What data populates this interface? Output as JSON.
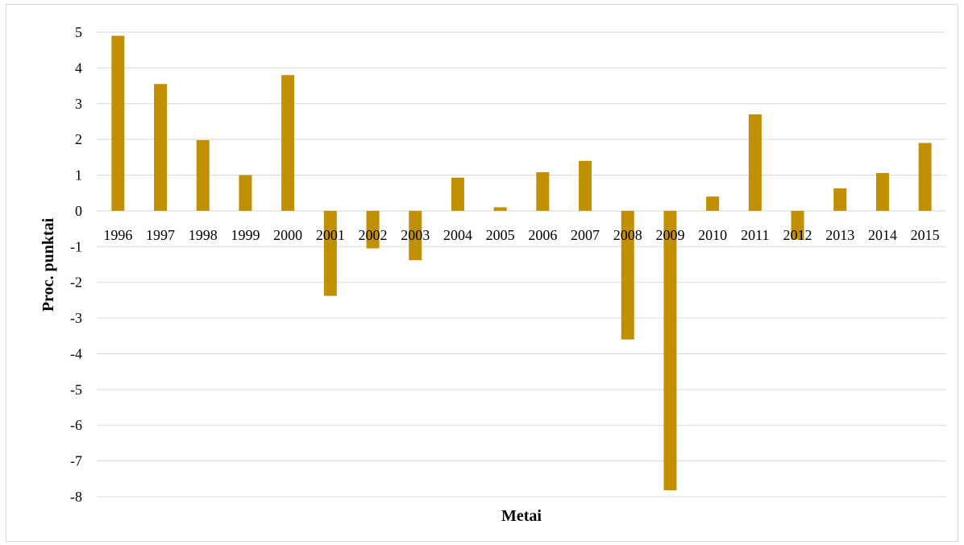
{
  "chart_data": {
    "type": "bar",
    "title": "",
    "xlabel": "Metai",
    "ylabel": "Proc. punktai",
    "categories": [
      "1996",
      "1997",
      "1998",
      "1999",
      "2000",
      "2001",
      "2002",
      "2003",
      "2004",
      "2005",
      "2006",
      "2007",
      "2008",
      "2009",
      "2010",
      "2011",
      "2012",
      "2013",
      "2014",
      "2015"
    ],
    "values": [
      4.9,
      3.55,
      1.98,
      1.0,
      3.8,
      -2.38,
      -1.05,
      -1.38,
      0.93,
      0.1,
      1.08,
      1.4,
      -3.6,
      -7.82,
      0.4,
      2.7,
      -0.8,
      0.63,
      1.06,
      1.9
    ],
    "ylim": [
      -8,
      5
    ],
    "yticks": [
      5,
      4,
      3,
      2,
      1,
      0,
      -1,
      -2,
      -3,
      -4,
      -5,
      -6,
      -7,
      -8
    ],
    "grid": true,
    "legend": "none",
    "bar_color": "#C09000",
    "grid_color": "#d9d9d9"
  }
}
